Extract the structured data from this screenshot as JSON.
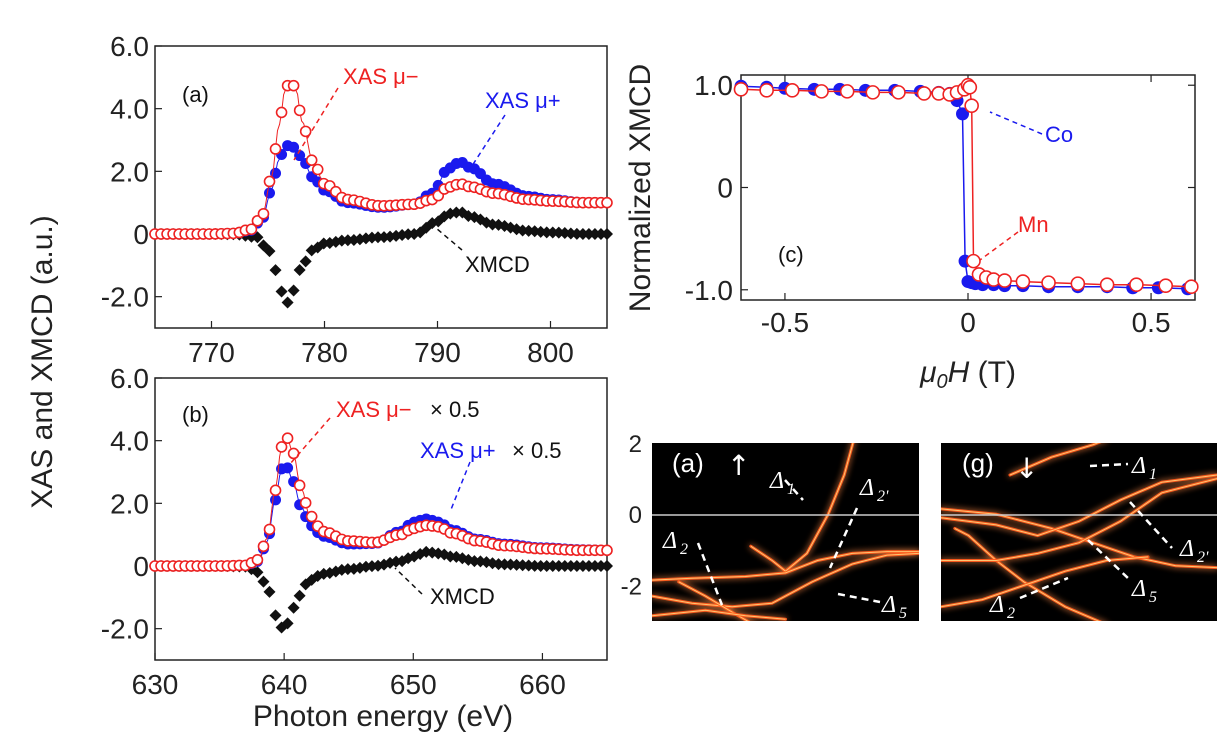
{
  "colors": {
    "mu_minus": "#ee2222",
    "mu_plus": "#1a1aee",
    "xmcd": "#111111",
    "band": "#ff5a1a",
    "band_bg": "#000000"
  },
  "shared_labels": {
    "ylabel_left": "XAS and XMCD (a.u.)",
    "xlabel_left": "Photon energy (eV)",
    "ylabel_c": "Normalized XMCD",
    "xlabel_c_mu": "μ",
    "xlabel_c_sub": "0",
    "xlabel_c_H": "H",
    "xlabel_c_unit": " (T)"
  },
  "chart_data": [
    {
      "id": "a",
      "type": "scatter",
      "panel_label": "(a)",
      "xlim": [
        765,
        805
      ],
      "ylim": [
        -3.0,
        6.0
      ],
      "xticks": [
        770,
        780,
        790,
        800
      ],
      "yticks": [
        6.0,
        4.0,
        2.0,
        0,
        -2.0
      ],
      "ytick_labels": [
        "6.0",
        "4.0",
        "2.0",
        "0",
        "-2.0"
      ],
      "annotations": {
        "mu_minus": "XAS μ−",
        "mu_plus": "XAS μ+",
        "xmcd": "XMCD"
      },
      "series": [
        {
          "key": "mu_minus",
          "name": "XAS μ−",
          "marker": "open-circle",
          "x": [
            765,
            770,
            772,
            773.5,
            774.5,
            775.3,
            776,
            776.5,
            777,
            777.5,
            778,
            779,
            780,
            782,
            785,
            788,
            789.5,
            791,
            792,
            793,
            795,
            798,
            800,
            803,
            805
          ],
          "y": [
            0,
            0,
            0.02,
            0.15,
            0.6,
            1.8,
            3.5,
            4.6,
            4.9,
            4.6,
            3.6,
            2.3,
            1.6,
            1.1,
            0.9,
            0.95,
            1.1,
            1.5,
            1.6,
            1.5,
            1.3,
            1.1,
            1.05,
            1.0,
            1.0
          ]
        },
        {
          "key": "mu_plus",
          "name": "XAS μ+",
          "marker": "filled-circle",
          "x": [
            765,
            770,
            772,
            773.5,
            774.5,
            775.3,
            776,
            776.5,
            777,
            777.5,
            778,
            779,
            780,
            782,
            785,
            788,
            789.5,
            791,
            792,
            793,
            795,
            798,
            800,
            803,
            805
          ],
          "y": [
            0,
            0,
            0.02,
            0.12,
            0.5,
            1.4,
            2.4,
            2.8,
            2.85,
            2.7,
            2.4,
            1.8,
            1.4,
            1.0,
            0.85,
            0.95,
            1.3,
            2.1,
            2.3,
            2.1,
            1.6,
            1.2,
            1.1,
            1.0,
            1.0
          ]
        },
        {
          "key": "xmcd",
          "name": "XMCD",
          "marker": "filled-diamond",
          "x": [
            765,
            770,
            772,
            774,
            775,
            775.8,
            776.3,
            776.8,
            777.3,
            778,
            779,
            780,
            782,
            785,
            788,
            790,
            791,
            792,
            793,
            795,
            798,
            800,
            803,
            805
          ],
          "y": [
            0,
            0,
            -0.01,
            -0.1,
            -0.5,
            -1.2,
            -1.9,
            -2.2,
            -1.8,
            -1.0,
            -0.5,
            -0.3,
            -0.2,
            -0.1,
            0.0,
            0.4,
            0.65,
            0.7,
            0.55,
            0.3,
            0.1,
            0.05,
            0.0,
            0.0
          ]
        }
      ]
    },
    {
      "id": "b",
      "type": "scatter",
      "panel_label": "(b)",
      "xlim": [
        630,
        665
      ],
      "ylim": [
        -3.0,
        6.0
      ],
      "xticks": [
        630,
        640,
        650,
        660
      ],
      "yticks": [
        6.0,
        4.0,
        2.0,
        0,
        -2.0
      ],
      "ytick_labels": [
        "6.0",
        "4.0",
        "2.0",
        "0",
        "-2.0"
      ],
      "annotations": {
        "mu_minus": "XAS μ−",
        "mu_minus_scale": "× 0.5",
        "mu_plus": "XAS μ+",
        "mu_plus_scale": "× 0.5",
        "xmcd": "XMCD"
      },
      "series": [
        {
          "key": "mu_minus",
          "name": "XAS μ−",
          "marker": "open-circle",
          "x": [
            630,
            635,
            637,
            638,
            638.7,
            639.3,
            639.8,
            640.2,
            640.7,
            641.3,
            642,
            643,
            645,
            647,
            649,
            650,
            651,
            652,
            653,
            655,
            657,
            660,
            663,
            665
          ],
          "y": [
            0,
            0,
            0.02,
            0.2,
            0.9,
            2.4,
            3.8,
            4.1,
            3.6,
            2.5,
            1.6,
            1.1,
            0.8,
            0.75,
            1.0,
            1.2,
            1.3,
            1.25,
            1.05,
            0.8,
            0.65,
            0.55,
            0.5,
            0.5
          ]
        },
        {
          "key": "mu_plus",
          "name": "XAS μ+",
          "marker": "filled-circle",
          "x": [
            630,
            635,
            637,
            638,
            638.7,
            639.3,
            639.8,
            640.2,
            640.7,
            641.3,
            642,
            643,
            645,
            647,
            649,
            650,
            651,
            652,
            653,
            655,
            657,
            660,
            663,
            665
          ],
          "y": [
            0,
            0,
            0.02,
            0.15,
            0.8,
            2.1,
            3.1,
            3.15,
            2.7,
            1.9,
            1.3,
            0.95,
            0.7,
            0.72,
            1.1,
            1.4,
            1.5,
            1.4,
            1.15,
            0.85,
            0.7,
            0.58,
            0.52,
            0.5
          ]
        },
        {
          "key": "xmcd",
          "name": "XMCD",
          "marker": "filled-diamond",
          "x": [
            630,
            635,
            637,
            638,
            638.8,
            639.4,
            639.9,
            640.4,
            641,
            642,
            643,
            645,
            647,
            649,
            650,
            651,
            652,
            653,
            655,
            657,
            660,
            663,
            665
          ],
          "y": [
            0,
            0,
            -0.02,
            -0.2,
            -0.8,
            -1.6,
            -2.0,
            -1.8,
            -1.0,
            -0.45,
            -0.25,
            -0.1,
            0.0,
            0.15,
            0.3,
            0.45,
            0.4,
            0.3,
            0.15,
            0.05,
            0.0,
            0.0,
            0.0
          ]
        }
      ]
    },
    {
      "id": "c",
      "type": "line",
      "panel_label": "(c)",
      "xlim": [
        -0.62,
        0.62
      ],
      "ylim": [
        -1.1,
        1.1
      ],
      "xticks": [
        -0.5,
        0,
        0.5
      ],
      "xtick_labels": [
        "-0.5",
        "0",
        "0.5"
      ],
      "yticks": [
        1.0,
        0,
        -1.0
      ],
      "ytick_labels": [
        "1.0",
        "0",
        "-1.0"
      ],
      "annotations": {
        "co": "Co",
        "mn": "Mn"
      },
      "series": [
        {
          "key": "co",
          "name": "Co",
          "marker": "filled-circle",
          "x": [
            -0.62,
            -0.55,
            -0.5,
            -0.42,
            -0.35,
            -0.28,
            -0.2,
            -0.13,
            -0.08,
            -0.05,
            -0.03,
            -0.015,
            -0.008,
            0.0,
            0.01,
            0.02,
            0.04,
            0.07,
            0.1,
            0.15,
            0.22,
            0.3,
            0.38,
            0.45,
            0.52,
            0.6
          ],
          "y": [
            0.99,
            0.98,
            0.97,
            0.96,
            0.96,
            0.95,
            0.95,
            0.94,
            0.93,
            0.92,
            0.85,
            0.72,
            -0.72,
            -0.92,
            -0.93,
            -0.94,
            -0.95,
            -0.95,
            -0.96,
            -0.96,
            -0.97,
            -0.97,
            -0.97,
            -0.98,
            -0.98,
            -0.99
          ]
        },
        {
          "key": "mn",
          "name": "Mn",
          "marker": "open-circle",
          "x": [
            -0.62,
            -0.55,
            -0.48,
            -0.4,
            -0.33,
            -0.26,
            -0.19,
            -0.12,
            -0.08,
            -0.05,
            -0.03,
            -0.01,
            0.0,
            0.005,
            0.01,
            0.015,
            0.03,
            0.05,
            0.07,
            0.1,
            0.15,
            0.22,
            0.3,
            0.38,
            0.46,
            0.54,
            0.61
          ],
          "y": [
            0.96,
            0.95,
            0.95,
            0.94,
            0.94,
            0.93,
            0.93,
            0.92,
            0.92,
            0.91,
            0.93,
            0.96,
            1.0,
            0.98,
            0.8,
            -0.72,
            -0.85,
            -0.88,
            -0.9,
            -0.91,
            -0.92,
            -0.93,
            -0.94,
            -0.95,
            -0.95,
            -0.96,
            -0.97
          ]
        }
      ]
    },
    {
      "id": "band_up",
      "type": "heatmap",
      "panel_label": "(a)",
      "spin": "↑",
      "ylim": [
        -3.0,
        2.0
      ],
      "yticks": [
        2,
        0,
        -2
      ],
      "ytick_labels": [
        "2",
        "0",
        "-2"
      ],
      "band_labels": [
        {
          "text": "Δ",
          "sub": "1"
        },
        {
          "text": "Δ",
          "sub": "2'"
        },
        {
          "text": "Δ",
          "sub": "2"
        },
        {
          "text": "Δ",
          "sub": "5"
        }
      ]
    },
    {
      "id": "band_down",
      "type": "heatmap",
      "panel_label": "(g)",
      "spin": "↓",
      "ylim": [
        -3.0,
        2.0
      ],
      "band_labels": [
        {
          "text": "Δ",
          "sub": "1"
        },
        {
          "text": "Δ",
          "sub": "2'"
        },
        {
          "text": "Δ",
          "sub": "5"
        },
        {
          "text": "Δ",
          "sub": "2"
        }
      ]
    }
  ]
}
